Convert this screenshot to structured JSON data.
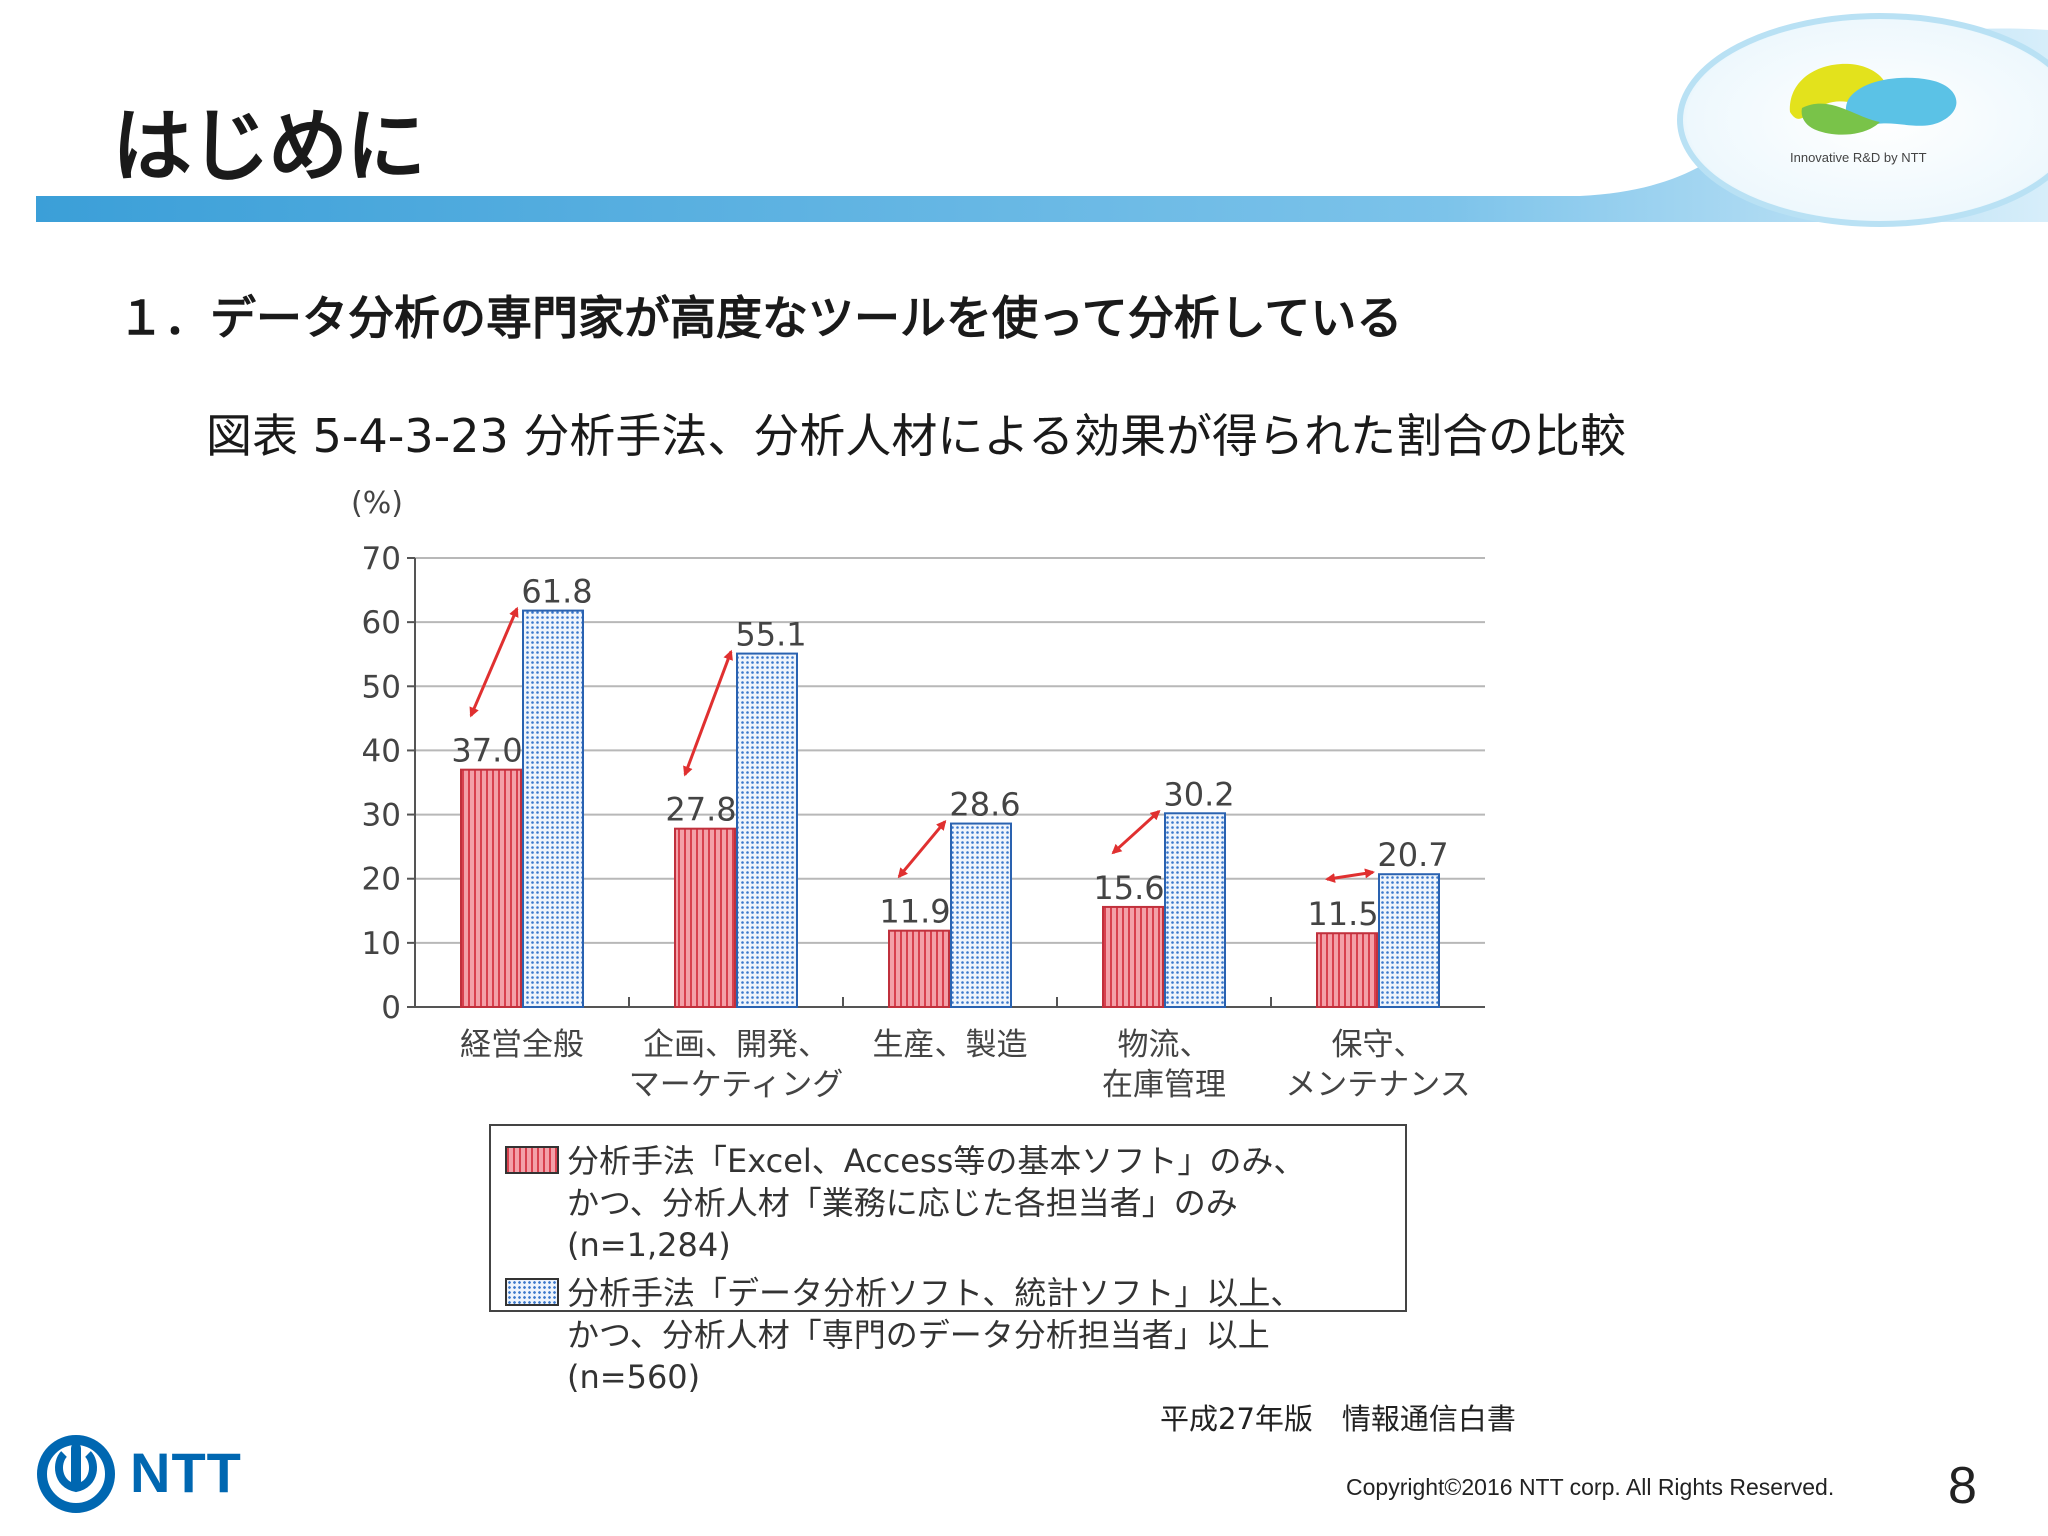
{
  "slide": {
    "title": "はじめに",
    "subheading": "１．データ分析の専門家が高度なツールを使って分析している",
    "figure_caption": "図表 5-4-3-23 分析手法、分析人材による効果が得られた割合の比較",
    "source": "平成27年版　情報通信白書",
    "copyright": "Copyright©2016 NTT corp. All Rights Reserved.",
    "page_number": "8",
    "logo_caption": "Innovative R&D by NTT",
    "corporate_logo_text": "NTT"
  },
  "colors": {
    "header_bar": "#4aa8dc",
    "series1_fill": "#f3a0a8",
    "series1_stripe": "#d8404e",
    "series2_fill": "#eef4fc",
    "series2_dot": "#3a78cc",
    "arrow": "#e03030",
    "ntt_blue": "#0067b1"
  },
  "chart_data": {
    "type": "bar",
    "ylabel": "(%)",
    "ylim": [
      0,
      70
    ],
    "yticks": [
      0,
      10,
      20,
      30,
      40,
      50,
      60,
      70
    ],
    "grid": true,
    "categories": [
      [
        "経営全般"
      ],
      [
        "企画、開発、",
        "マーケティング"
      ],
      [
        "生産、製造"
      ],
      [
        "物流、",
        "在庫管理"
      ],
      [
        "保守、",
        "メンテナンス"
      ]
    ],
    "series": [
      {
        "name": "分析手法「Excel、Access等の基本ソフト」のみ、かつ、分析人材「業務に応じた各担当者」のみ(n=1,284)",
        "legend_lines": [
          "分析手法「Excel、Access等の基本ソフト」のみ、",
          "かつ、分析人材「業務に応じた各担当者」のみ(n=1,284)"
        ],
        "values": [
          37.0,
          27.8,
          11.9,
          15.6,
          11.5
        ],
        "labels": [
          "37.0",
          "27.8",
          "11.9",
          "15.6",
          "11.5"
        ]
      },
      {
        "name": "分析手法「データ分析ソフト、統計ソフト」以上、かつ、分析人材「専門のデータ分析担当者」以上(n=560)",
        "legend_lines": [
          "分析手法「データ分析ソフト、統計ソフト」以上、",
          "かつ、分析人材「専門のデータ分析担当者」以上(n=560)"
        ],
        "values": [
          61.8,
          55.1,
          28.6,
          30.2,
          20.7
        ],
        "labels": [
          "61.8",
          "55.1",
          "28.6",
          "30.2",
          "20.7"
        ]
      }
    ],
    "legend_position": "bottom"
  }
}
